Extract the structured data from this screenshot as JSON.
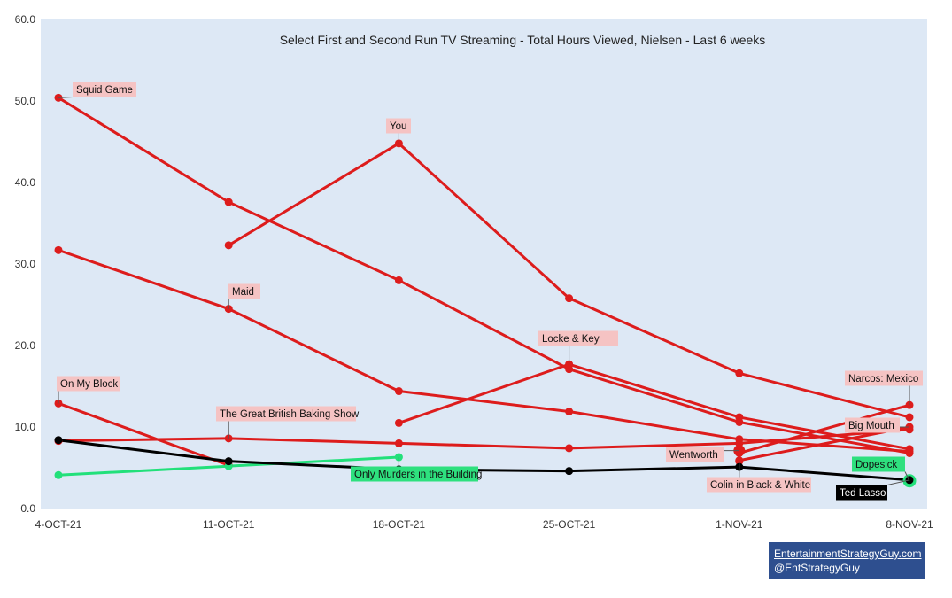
{
  "chart_data": {
    "type": "line",
    "title": "Select First and Second Run TV Streaming - Total Hours Viewed, Nielsen - Last 6 weeks",
    "xlabel": "",
    "ylabel": "",
    "categories": [
      "4-OCT-21",
      "11-OCT-21",
      "18-OCT-21",
      "25-OCT-21",
      "1-NOV-21",
      "8-NOV-21"
    ],
    "ylim": [
      0,
      60
    ],
    "yticks": [
      "0.0",
      "10.0",
      "20.0",
      "30.0",
      "40.0",
      "50.0",
      "60.0"
    ],
    "grid": false,
    "colors": {
      "plot_bg": "#dde8f5",
      "red": "#dd1c1c",
      "green": "#22e07a",
      "black": "#000000",
      "label_bg_red": "#f5c3c3",
      "label_bg_green": "#2ee07e",
      "label_bg_black": "#000000"
    },
    "series": [
      {
        "name": "Squid Game",
        "color": "red",
        "values": [
          50.4,
          37.6,
          28.0,
          17.1,
          10.6,
          6.8
        ]
      },
      {
        "name": "You",
        "color": "red",
        "values": [
          null,
          32.3,
          44.8,
          25.8,
          16.6,
          11.2
        ]
      },
      {
        "name": "Maid",
        "color": "red",
        "values": [
          31.7,
          24.5,
          14.4,
          11.9,
          8.5,
          7.0
        ]
      },
      {
        "name": "Locke & Key",
        "color": "red",
        "values": [
          null,
          null,
          10.5,
          17.7,
          11.2,
          7.3
        ]
      },
      {
        "name": "On My Block",
        "color": "red",
        "values": [
          12.9,
          5.3,
          null,
          null,
          null,
          null
        ]
      },
      {
        "name": "The Great British Baking Show",
        "color": "red",
        "values": [
          8.3,
          8.6,
          8.0,
          7.4,
          8.0,
          9.7
        ]
      },
      {
        "name": "Narcos: Mexico",
        "color": "red",
        "values": [
          null,
          null,
          null,
          null,
          6.8,
          12.7
        ]
      },
      {
        "name": "Big Mouth",
        "color": "red",
        "values": [
          null,
          null,
          null,
          null,
          5.9,
          10.0
        ]
      },
      {
        "name": "Wentworth",
        "color": "red",
        "values": [
          null,
          null,
          null,
          null,
          7.1,
          null
        ]
      },
      {
        "name": "Colin in Black & White",
        "color": "red",
        "values": [
          null,
          null,
          null,
          null,
          5.8,
          null
        ]
      },
      {
        "name": "Only Murders in the Building",
        "color": "green",
        "values": [
          4.1,
          5.2,
          6.3,
          null,
          null,
          null
        ]
      },
      {
        "name": "Dopesick",
        "color": "green",
        "values": [
          null,
          null,
          null,
          null,
          null,
          3.4
        ]
      },
      {
        "name": "Ted Lasso",
        "color": "black",
        "values": [
          8.4,
          5.8,
          4.8,
          4.6,
          5.1,
          3.5
        ]
      }
    ],
    "labels": [
      {
        "text": "Squid Game",
        "style": "red"
      },
      {
        "text": "You",
        "style": "red"
      },
      {
        "text": "Maid",
        "style": "red"
      },
      {
        "text": "Locke & Key",
        "style": "red"
      },
      {
        "text": "On My Block",
        "style": "red"
      },
      {
        "text": "The Great British Baking Show",
        "style": "red"
      },
      {
        "text": "Narcos: Mexico",
        "style": "red"
      },
      {
        "text": "Big Mouth",
        "style": "red"
      },
      {
        "text": "Wentworth",
        "style": "red"
      },
      {
        "text": "Colin in Black & White",
        "style": "red"
      },
      {
        "text": "Only Murders in the Building",
        "style": "green"
      },
      {
        "text": "Dopesick",
        "style": "green"
      },
      {
        "text": "Ted Lasso",
        "style": "black"
      }
    ]
  },
  "credit": {
    "line1": "EntertainmentStrategyGuy.com",
    "line2": "@EntStrategyGuy"
  }
}
